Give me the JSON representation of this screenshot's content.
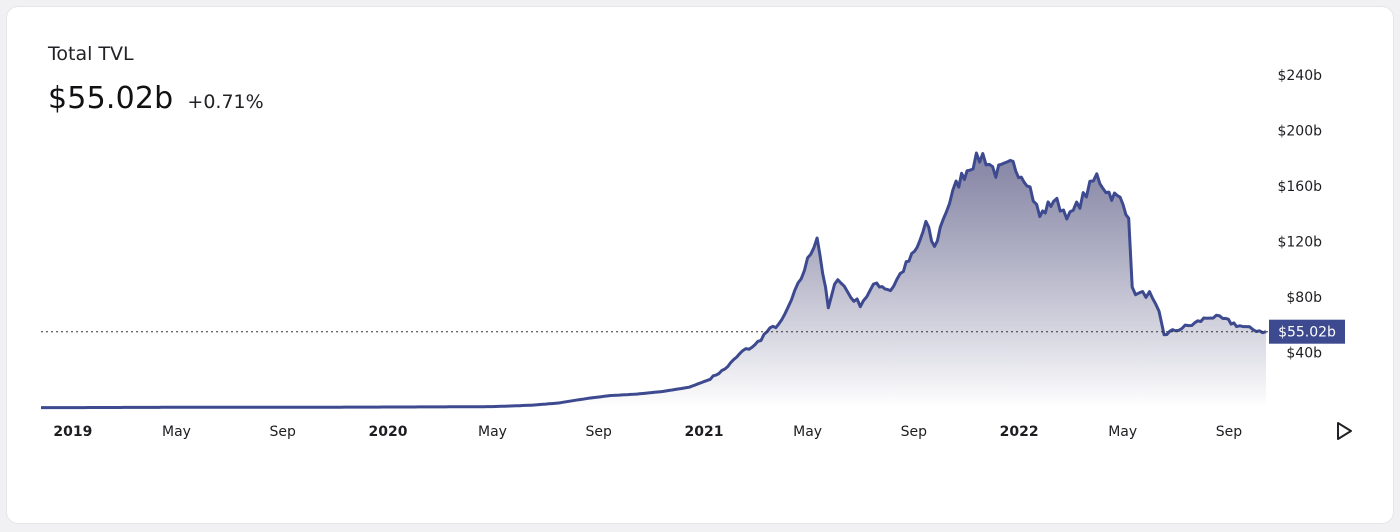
{
  "header": {
    "title": "Total TVL",
    "value": "$55.02b",
    "change": "+0.71%"
  },
  "colors": {
    "line": "#3d4a8f",
    "fill_top": "#6e6e94",
    "fill_bottom": "#ffffff",
    "price_tag_bg": "#3d4a8f",
    "price_tag_text": "#ffffff",
    "tick_text": "#1e1e22"
  },
  "controls": {
    "play_icon": "play-triangle-icon"
  },
  "chart_data": {
    "type": "area",
    "title": "Total TVL",
    "xlabel": "",
    "ylabel": "",
    "x_range": [
      "2018-11-25",
      "2022-10-14"
    ],
    "ylim": [
      0,
      240
    ],
    "y_unit": "billions USD",
    "y_ticks": [
      {
        "value": 40,
        "label": "$40b"
      },
      {
        "value": 80,
        "label": "$80b"
      },
      {
        "value": 120,
        "label": "$120b"
      },
      {
        "value": 160,
        "label": "$160b"
      },
      {
        "value": 200,
        "label": "$200b"
      },
      {
        "value": 240,
        "label": "$240b"
      }
    ],
    "x_ticks": [
      {
        "date": "2019-01-01",
        "label": "2019",
        "bold": true
      },
      {
        "date": "2019-05-01",
        "label": "May",
        "bold": false
      },
      {
        "date": "2019-09-01",
        "label": "Sep",
        "bold": false
      },
      {
        "date": "2020-01-01",
        "label": "2020",
        "bold": true
      },
      {
        "date": "2020-05-01",
        "label": "May",
        "bold": false
      },
      {
        "date": "2020-09-01",
        "label": "Sep",
        "bold": false
      },
      {
        "date": "2021-01-01",
        "label": "2021",
        "bold": true
      },
      {
        "date": "2021-05-01",
        "label": "May",
        "bold": false
      },
      {
        "date": "2021-09-01",
        "label": "Sep",
        "bold": false
      },
      {
        "date": "2022-01-01",
        "label": "2022",
        "bold": true
      },
      {
        "date": "2022-05-01",
        "label": "May",
        "bold": false
      },
      {
        "date": "2022-09-01",
        "label": "Sep",
        "bold": false
      }
    ],
    "current": {
      "value": 55.02,
      "label": "$55.02b"
    },
    "series": [
      {
        "values": [
          [
            "2018-11-25",
            0.3
          ],
          [
            "2019-01-01",
            0.3
          ],
          [
            "2019-03-01",
            0.4
          ],
          [
            "2019-05-01",
            0.5
          ],
          [
            "2019-07-01",
            0.6
          ],
          [
            "2019-09-01",
            0.6
          ],
          [
            "2019-11-01",
            0.6
          ],
          [
            "2020-01-01",
            0.7
          ],
          [
            "2020-03-01",
            0.8
          ],
          [
            "2020-05-01",
            1.0
          ],
          [
            "2020-06-15",
            2.0
          ],
          [
            "2020-07-15",
            3.5
          ],
          [
            "2020-08-20",
            7.0
          ],
          [
            "2020-09-15",
            9.0
          ],
          [
            "2020-10-15",
            10.0
          ],
          [
            "2020-11-15",
            12.0
          ],
          [
            "2020-12-15",
            15.0
          ],
          [
            "2021-01-05",
            20.0
          ],
          [
            "2021-01-25",
            28.0
          ],
          [
            "2021-02-15",
            41.0
          ],
          [
            "2021-03-01",
            45.0
          ],
          [
            "2021-03-15",
            55.0
          ],
          [
            "2021-04-01",
            62.0
          ],
          [
            "2021-04-20",
            88.0
          ],
          [
            "2021-05-12",
            124.0
          ],
          [
            "2021-05-25",
            72.0
          ],
          [
            "2021-06-05",
            95.0
          ],
          [
            "2021-06-20",
            80.0
          ],
          [
            "2021-07-01",
            75.0
          ],
          [
            "2021-07-20",
            90.0
          ],
          [
            "2021-08-05",
            85.0
          ],
          [
            "2021-08-20",
            100.0
          ],
          [
            "2021-09-05",
            115.0
          ],
          [
            "2021-09-15",
            133.0
          ],
          [
            "2021-09-25",
            115.0
          ],
          [
            "2021-10-05",
            137.0
          ],
          [
            "2021-10-20",
            160.0
          ],
          [
            "2021-11-05",
            175.0
          ],
          [
            "2021-11-20",
            182.0
          ],
          [
            "2021-12-05",
            170.0
          ],
          [
            "2021-12-25",
            175.0
          ],
          [
            "2022-01-10",
            165.0
          ],
          [
            "2022-01-25",
            138.0
          ],
          [
            "2022-02-10",
            150.0
          ],
          [
            "2022-03-01",
            138.0
          ],
          [
            "2022-03-20",
            155.0
          ],
          [
            "2022-04-01",
            167.0
          ],
          [
            "2022-04-15",
            155.0
          ],
          [
            "2022-04-28",
            150.0
          ],
          [
            "2022-05-08",
            140.0
          ],
          [
            "2022-05-12",
            85.0
          ],
          [
            "2022-05-20",
            82.0
          ],
          [
            "2022-06-01",
            82.0
          ],
          [
            "2022-06-12",
            68.0
          ],
          [
            "2022-06-18",
            53.0
          ],
          [
            "2022-07-01",
            56.0
          ],
          [
            "2022-07-20",
            60.0
          ],
          [
            "2022-08-10",
            66.0
          ],
          [
            "2022-08-25",
            64.0
          ],
          [
            "2022-09-10",
            60.0
          ],
          [
            "2022-09-25",
            57.0
          ],
          [
            "2022-10-14",
            55.02
          ]
        ]
      }
    ],
    "grid": false,
    "legend": "none"
  }
}
